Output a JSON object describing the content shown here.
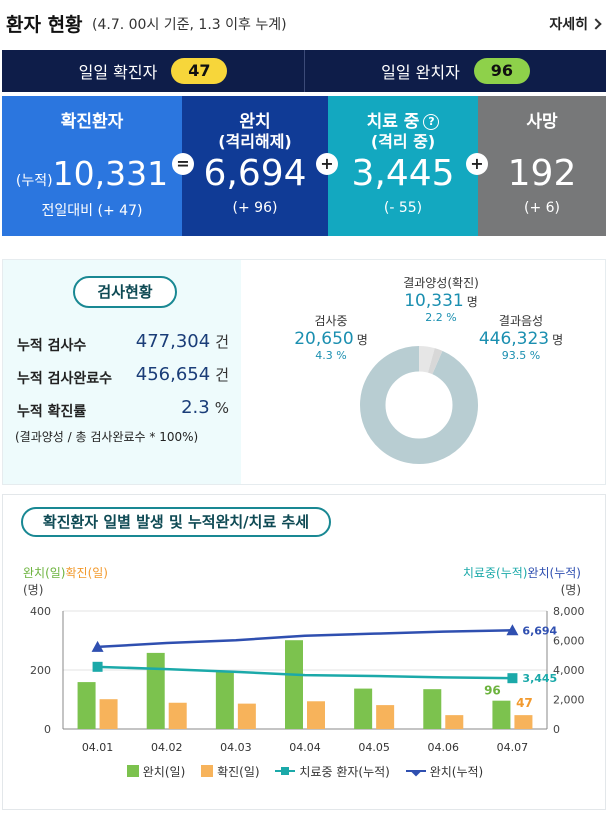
{
  "header": {
    "title": "환자 현황",
    "subtitle": "(4.7. 00시 기준, 1.3 이후 누계)",
    "more_label": "자세히"
  },
  "daily": {
    "confirmed_label": "일일 확진자",
    "confirmed_value": "47",
    "released_label": "일일 완치자",
    "released_value": "96"
  },
  "summary": {
    "confirmed": {
      "label": "확진환자",
      "prefix": "(누적)",
      "value": "10,331",
      "change": "전일대비 (+ 47)"
    },
    "released": {
      "label": "완치",
      "sublabel": "(격리해제)",
      "value": "6,694",
      "change": "(+ 96)"
    },
    "treatment": {
      "label": "치료 중",
      "sublabel": "(격리 중)",
      "value": "3,445",
      "change": "(- 55)",
      "help_icon": "?"
    },
    "deceased": {
      "label": "사망",
      "value": "192",
      "change": "(+ 6)"
    },
    "operators": {
      "equals": "=",
      "plus1": "+",
      "plus2": "+"
    }
  },
  "test_status": {
    "title": "검사현황",
    "rows": [
      {
        "label": "누적 검사수",
        "value": "477,304",
        "unit": "건"
      },
      {
        "label": "누적 검사완료수",
        "value": "456,654",
        "unit": "건"
      },
      {
        "label": "누적 확진률",
        "value": "2.3",
        "unit": "%"
      }
    ],
    "note": "(결과양성 / 총 검사완료수 * 100%)",
    "pie": {
      "positive": {
        "label": "결과양성(확진)",
        "value": "10,331",
        "unit": "명",
        "pct": "2.2 %",
        "share": 0.022
      },
      "testing": {
        "label": "검사중",
        "value": "20,650",
        "unit": "명",
        "pct": "4.3 %",
        "share": 0.043
      },
      "negative": {
        "label": "결과음성",
        "value": "446,323",
        "unit": "명",
        "pct": "93.5 %",
        "share": 0.935
      }
    },
    "colors": {
      "negative": "#b8cdd2",
      "testing": "#e6e6e6",
      "positive": "#d8d8d8"
    }
  },
  "trend": {
    "title": "확진환자 일별 발생 및 누적완치/치료 추세",
    "left_axis_title_a": "완치(일)",
    "left_axis_title_b": "확진(일)",
    "left_unit": "(명)",
    "right_axis_title_a": "치료중(누적)",
    "right_axis_title_b": "완치(누적)",
    "right_unit": "(명)"
  },
  "chart_data": {
    "type": "bar",
    "categories": [
      "04.01",
      "04.02",
      "04.03",
      "04.04",
      "04.05",
      "04.06",
      "04.07"
    ],
    "series": [
      {
        "name": "완치(일)",
        "type": "bar",
        "axis": "left",
        "color": "#7cc24e",
        "values": [
          159,
          258,
          193,
          301,
          137,
          135,
          96
        ]
      },
      {
        "name": "확진(일)",
        "type": "bar",
        "axis": "left",
        "color": "#f7b35b",
        "values": [
          101,
          89,
          86,
          94,
          81,
          47,
          47
        ]
      },
      {
        "name": "치료중 환자(누적)",
        "type": "line",
        "axis": "right",
        "color": "#1ba9a9",
        "values": [
          4216,
          4057,
          3869,
          3654,
          3591,
          3500,
          3445
        ]
      },
      {
        "name": "완치(누적)",
        "type": "line",
        "axis": "right",
        "color": "#2f4fb0",
        "values": [
          5567,
          5828,
          6021,
          6325,
          6463,
          6598,
          6694
        ]
      }
    ],
    "left_ylim": [
      0,
      400
    ],
    "left_ticks": [
      "0",
      "200",
      "400"
    ],
    "right_ylim": [
      0,
      8000
    ],
    "right_ticks": [
      "0",
      "2,000",
      "4,000",
      "6,000",
      "8,000"
    ],
    "annotations": {
      "bar_released_last": "96",
      "bar_confirmed_last": "47",
      "treatment_last": "3,445",
      "released_last": "6,694"
    },
    "legend_position": "bottom"
  }
}
